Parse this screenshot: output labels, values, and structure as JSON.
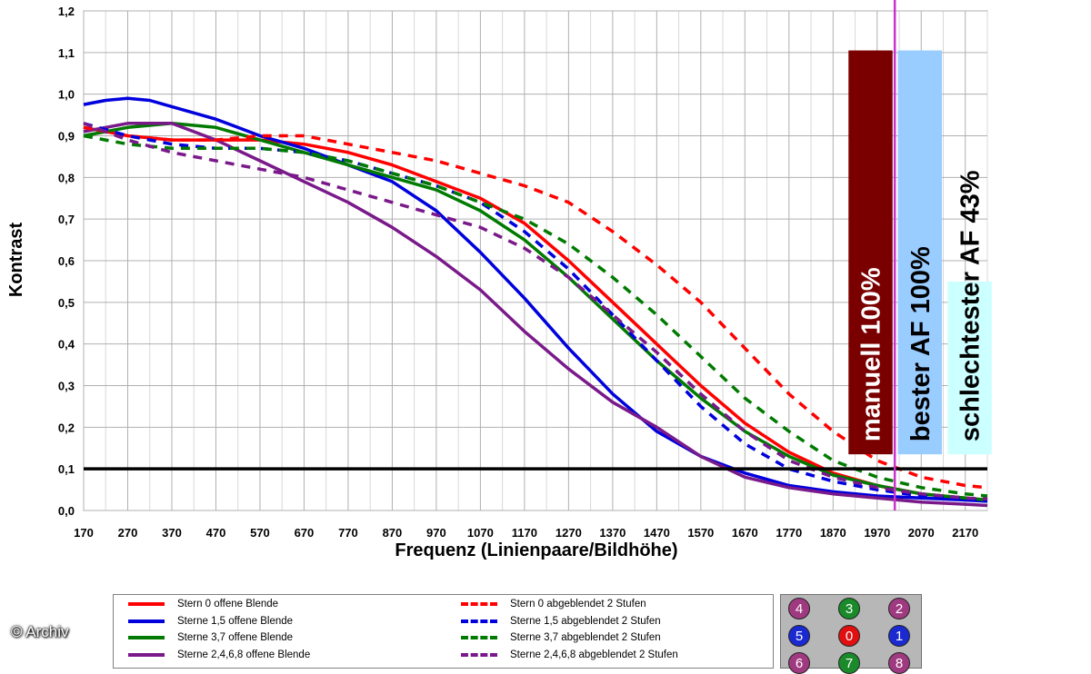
{
  "chart_data": {
    "type": "line",
    "xlabel": "Frequenz (Linienpaare/Bildhöhe)",
    "ylabel": "Kontrast",
    "xlim": [
      170,
      2220
    ],
    "ylim": [
      0,
      1.2
    ],
    "x_ticks": [
      "170",
      "270",
      "370",
      "470",
      "570",
      "670",
      "770",
      "870",
      "970",
      "1070",
      "1170",
      "1270",
      "1370",
      "1470",
      "1570",
      "1670",
      "1770",
      "1870",
      "1970",
      "2070",
      "2170"
    ],
    "y_ticks": [
      "0,0",
      "0,1",
      "0,2",
      "0,3",
      "0,4",
      "0,5",
      "0,6",
      "0,7",
      "0,8",
      "0,9",
      "1,0",
      "1,1",
      "1,2"
    ],
    "grid": true,
    "reference_line": {
      "y": 0.1,
      "color": "#000000"
    },
    "marker_line": {
      "x": 2010,
      "color": "#cc33cc"
    },
    "series": [
      {
        "name": "Stern 0 offene Blende",
        "color": "#ff0000",
        "dash": false,
        "points": [
          [
            170,
            0.92
          ],
          [
            270,
            0.9
          ],
          [
            370,
            0.89
          ],
          [
            470,
            0.89
          ],
          [
            570,
            0.89
          ],
          [
            670,
            0.88
          ],
          [
            770,
            0.86
          ],
          [
            870,
            0.83
          ],
          [
            970,
            0.79
          ],
          [
            1070,
            0.75
          ],
          [
            1170,
            0.69
          ],
          [
            1270,
            0.6
          ],
          [
            1370,
            0.5
          ],
          [
            1470,
            0.4
          ],
          [
            1570,
            0.3
          ],
          [
            1670,
            0.21
          ],
          [
            1770,
            0.14
          ],
          [
            1870,
            0.09
          ],
          [
            1970,
            0.06
          ],
          [
            2070,
            0.04
          ],
          [
            2170,
            0.03
          ],
          [
            2220,
            0.025
          ]
        ]
      },
      {
        "name": "Sterne 1,5 offene Blende",
        "color": "#0000dd",
        "dash": false,
        "points": [
          [
            170,
            0.975
          ],
          [
            220,
            0.985
          ],
          [
            270,
            0.99
          ],
          [
            320,
            0.985
          ],
          [
            370,
            0.97
          ],
          [
            470,
            0.94
          ],
          [
            570,
            0.9
          ],
          [
            670,
            0.87
          ],
          [
            770,
            0.83
          ],
          [
            870,
            0.79
          ],
          [
            970,
            0.72
          ],
          [
            1070,
            0.62
          ],
          [
            1170,
            0.51
          ],
          [
            1270,
            0.39
          ],
          [
            1370,
            0.28
          ],
          [
            1470,
            0.19
          ],
          [
            1570,
            0.13
          ],
          [
            1670,
            0.09
          ],
          [
            1770,
            0.06
          ],
          [
            1870,
            0.045
          ],
          [
            1970,
            0.035
          ],
          [
            2070,
            0.03
          ],
          [
            2170,
            0.025
          ],
          [
            2220,
            0.022
          ]
        ]
      },
      {
        "name": "Sterne 3,7 offene Blende",
        "color": "#007a00",
        "dash": false,
        "points": [
          [
            170,
            0.9
          ],
          [
            270,
            0.92
          ],
          [
            370,
            0.93
          ],
          [
            470,
            0.92
          ],
          [
            570,
            0.89
          ],
          [
            670,
            0.86
          ],
          [
            770,
            0.83
          ],
          [
            870,
            0.8
          ],
          [
            970,
            0.77
          ],
          [
            1070,
            0.72
          ],
          [
            1170,
            0.65
          ],
          [
            1270,
            0.56
          ],
          [
            1370,
            0.46
          ],
          [
            1470,
            0.36
          ],
          [
            1570,
            0.27
          ],
          [
            1670,
            0.19
          ],
          [
            1770,
            0.13
          ],
          [
            1870,
            0.085
          ],
          [
            1970,
            0.06
          ],
          [
            2070,
            0.04
          ],
          [
            2170,
            0.03
          ],
          [
            2220,
            0.025
          ]
        ]
      },
      {
        "name": "Sterne 2,4,6,8 offene Blende",
        "color": "#7a1a8a",
        "dash": false,
        "points": [
          [
            170,
            0.91
          ],
          [
            270,
            0.93
          ],
          [
            370,
            0.93
          ],
          [
            470,
            0.89
          ],
          [
            570,
            0.84
          ],
          [
            670,
            0.79
          ],
          [
            770,
            0.74
          ],
          [
            870,
            0.68
          ],
          [
            970,
            0.61
          ],
          [
            1070,
            0.53
          ],
          [
            1170,
            0.43
          ],
          [
            1270,
            0.34
          ],
          [
            1370,
            0.26
          ],
          [
            1470,
            0.2
          ],
          [
            1570,
            0.13
          ],
          [
            1670,
            0.08
          ],
          [
            1770,
            0.055
          ],
          [
            1870,
            0.04
          ],
          [
            1970,
            0.03
          ],
          [
            2070,
            0.02
          ],
          [
            2170,
            0.015
          ],
          [
            2220,
            0.012
          ]
        ]
      },
      {
        "name": "Stern 0 abgeblendet 2 Stufen",
        "color": "#ff0000",
        "dash": true,
        "points": [
          [
            170,
            0.92
          ],
          [
            270,
            0.9
          ],
          [
            370,
            0.89
          ],
          [
            470,
            0.89
          ],
          [
            570,
            0.9
          ],
          [
            670,
            0.9
          ],
          [
            770,
            0.88
          ],
          [
            870,
            0.86
          ],
          [
            970,
            0.84
          ],
          [
            1070,
            0.81
          ],
          [
            1170,
            0.78
          ],
          [
            1270,
            0.74
          ],
          [
            1370,
            0.67
          ],
          [
            1470,
            0.59
          ],
          [
            1570,
            0.5
          ],
          [
            1670,
            0.39
          ],
          [
            1770,
            0.28
          ],
          [
            1870,
            0.19
          ],
          [
            1970,
            0.12
          ],
          [
            2070,
            0.08
          ],
          [
            2170,
            0.06
          ],
          [
            2220,
            0.055
          ]
        ]
      },
      {
        "name": "Sterne 1,5 abgeblendet 2 Stufen",
        "color": "#0000dd",
        "dash": true,
        "points": [
          [
            170,
            0.93
          ],
          [
            270,
            0.9
          ],
          [
            370,
            0.88
          ],
          [
            470,
            0.87
          ],
          [
            570,
            0.87
          ],
          [
            670,
            0.86
          ],
          [
            770,
            0.84
          ],
          [
            870,
            0.81
          ],
          [
            970,
            0.78
          ],
          [
            1070,
            0.74
          ],
          [
            1170,
            0.67
          ],
          [
            1270,
            0.58
          ],
          [
            1370,
            0.47
          ],
          [
            1470,
            0.36
          ],
          [
            1570,
            0.25
          ],
          [
            1670,
            0.16
          ],
          [
            1770,
            0.1
          ],
          [
            1870,
            0.07
          ],
          [
            1970,
            0.05
          ],
          [
            2070,
            0.035
          ],
          [
            2170,
            0.028
          ],
          [
            2220,
            0.025
          ]
        ]
      },
      {
        "name": "Sterne 3,7 abgeblendet 2 Stufen",
        "color": "#007a00",
        "dash": true,
        "points": [
          [
            170,
            0.9
          ],
          [
            270,
            0.88
          ],
          [
            370,
            0.87
          ],
          [
            470,
            0.87
          ],
          [
            570,
            0.87
          ],
          [
            670,
            0.86
          ],
          [
            770,
            0.84
          ],
          [
            870,
            0.81
          ],
          [
            970,
            0.78
          ],
          [
            1070,
            0.74
          ],
          [
            1170,
            0.7
          ],
          [
            1270,
            0.64
          ],
          [
            1370,
            0.56
          ],
          [
            1470,
            0.47
          ],
          [
            1570,
            0.37
          ],
          [
            1670,
            0.27
          ],
          [
            1770,
            0.19
          ],
          [
            1870,
            0.12
          ],
          [
            1970,
            0.08
          ],
          [
            2070,
            0.055
          ],
          [
            2170,
            0.04
          ],
          [
            2220,
            0.035
          ]
        ]
      },
      {
        "name": "Sterne 2,4,6,8 abgeblendet 2 Stufen",
        "color": "#7a1a8a",
        "dash": true,
        "points": [
          [
            170,
            0.93
          ],
          [
            270,
            0.89
          ],
          [
            370,
            0.86
          ],
          [
            470,
            0.84
          ],
          [
            570,
            0.82
          ],
          [
            670,
            0.8
          ],
          [
            770,
            0.77
          ],
          [
            870,
            0.74
          ],
          [
            970,
            0.71
          ],
          [
            1070,
            0.68
          ],
          [
            1170,
            0.63
          ],
          [
            1270,
            0.56
          ],
          [
            1370,
            0.47
          ],
          [
            1470,
            0.38
          ],
          [
            1570,
            0.28
          ],
          [
            1670,
            0.19
          ],
          [
            1770,
            0.12
          ],
          [
            1870,
            0.08
          ],
          [
            1970,
            0.055
          ],
          [
            2070,
            0.04
          ],
          [
            2170,
            0.03
          ],
          [
            2220,
            0.028
          ]
        ]
      }
    ],
    "bars": [
      {
        "label": "manuell 100%",
        "x_from": 1905,
        "x_to": 2005,
        "y_from": 0.135,
        "y_top": 1.105,
        "fill": "#7a0000",
        "text_color": "#ffffff"
      },
      {
        "label": "bester AF 100%",
        "x_from": 2017,
        "x_to": 2117,
        "y_from": 0.135,
        "y_top": 1.105,
        "fill": "#99ccff",
        "text_color": "#000000"
      },
      {
        "label": "schlechtester AF 43%",
        "x_from": 2130,
        "x_to": 2230,
        "y_from": 0.135,
        "y_top": 0.55,
        "fill": "#ccffff",
        "text_color": "#000000"
      }
    ]
  },
  "legend": {
    "items": [
      {
        "label": "Stern 0 offene Blende",
        "color": "#ff0000",
        "dash": false
      },
      {
        "label": "Sterne 1,5 offene Blende",
        "color": "#0000dd",
        "dash": false
      },
      {
        "label": "Sterne 3,7 offene Blende",
        "color": "#007a00",
        "dash": false
      },
      {
        "label": "Sterne 2,4,6,8 offene Blende",
        "color": "#7a1a8a",
        "dash": false
      },
      {
        "label": "Stern 0 abgeblendet 2 Stufen",
        "color": "#ff0000",
        "dash": true
      },
      {
        "label": "Sterne 1,5 abgeblendet 2 Stufen",
        "color": "#0000dd",
        "dash": true
      },
      {
        "label": "Sterne 3,7 abgeblendet 2 Stufen",
        "color": "#007a00",
        "dash": true
      },
      {
        "label": "Sterne 2,4,6,8 abgeblendet 2 Stufen",
        "color": "#7a1a8a",
        "dash": true
      }
    ]
  },
  "star_positions": [
    {
      "label": "4",
      "color": "#a03a80"
    },
    {
      "label": "3",
      "color": "#1a8a2a"
    },
    {
      "label": "2",
      "color": "#a03a80"
    },
    {
      "label": "5",
      "color": "#1a2ad0"
    },
    {
      "label": "0",
      "color": "#e01010"
    },
    {
      "label": "1",
      "color": "#1a2ad0"
    },
    {
      "label": "6",
      "color": "#a03a80"
    },
    {
      "label": "7",
      "color": "#1a8a2a"
    },
    {
      "label": "8",
      "color": "#a03a80"
    }
  ],
  "copyright": "© Archiv"
}
